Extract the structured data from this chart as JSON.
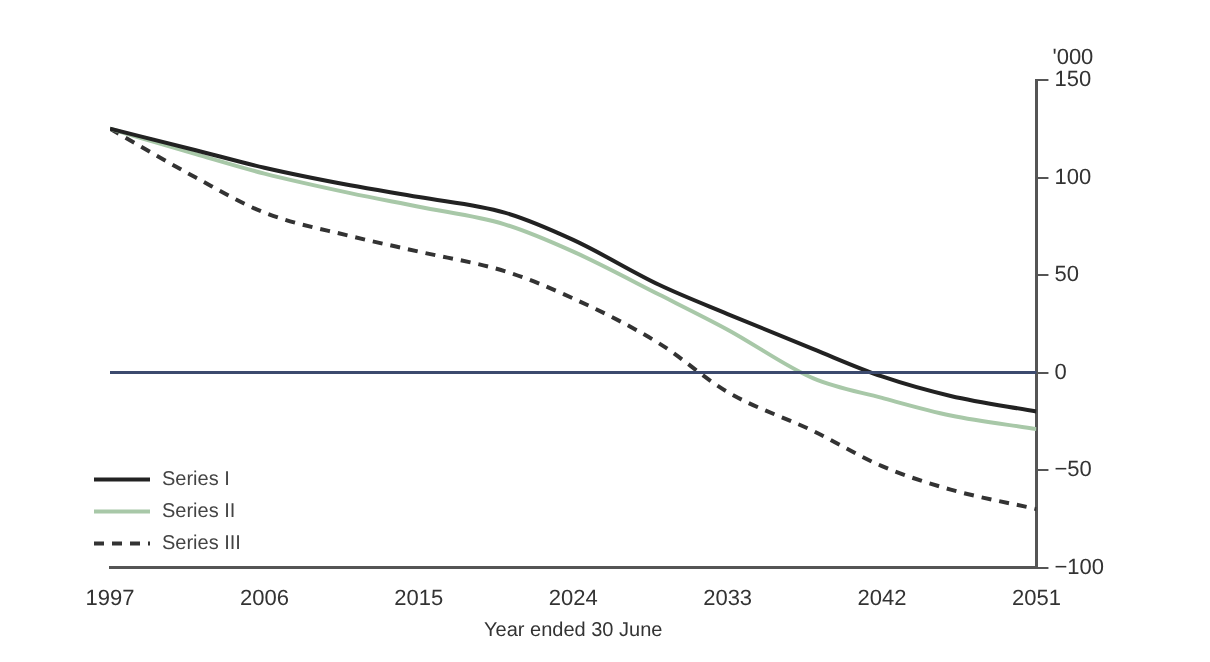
{
  "chart_data": {
    "type": "line",
    "xlabel": "Year ended 30 June",
    "ylabel": "'000",
    "xlim": [
      1997,
      2051
    ],
    "xticks": [
      1997,
      2006,
      2015,
      2024,
      2033,
      2042,
      2051
    ],
    "ylim": [
      -100,
      150
    ],
    "yticks": [
      -100,
      -50,
      0,
      50,
      100,
      150
    ],
    "grid": false,
    "legend": "bottom left",
    "marker": "none",
    "ref_lines": [
      {
        "axis": "y",
        "value": 0,
        "color": "#3c4a6e"
      }
    ],
    "x": [
      1997,
      2002,
      2006,
      2011,
      2015,
      2020,
      2024,
      2029,
      2033,
      2038,
      2042,
      2046,
      2051
    ],
    "series": [
      {
        "name": "Series I",
        "color": "#222222",
        "line_style": "solid",
        "values": [
          125,
          114,
          105,
          96,
          90,
          82,
          68,
          45,
          30,
          12,
          -2,
          -12,
          -20
        ]
      },
      {
        "name": "Series II",
        "color": "#a8c8a8",
        "line_style": "solid",
        "values": [
          125,
          112,
          102,
          92,
          85,
          76,
          62,
          40,
          22,
          -3,
          -13,
          -22,
          -29
        ]
      },
      {
        "name": "Series III",
        "color": "#333333",
        "line_style": "dashed",
        "values": [
          125,
          100,
          82,
          70,
          62,
          52,
          38,
          15,
          -10,
          -30,
          -48,
          -60,
          -70
        ]
      }
    ]
  }
}
